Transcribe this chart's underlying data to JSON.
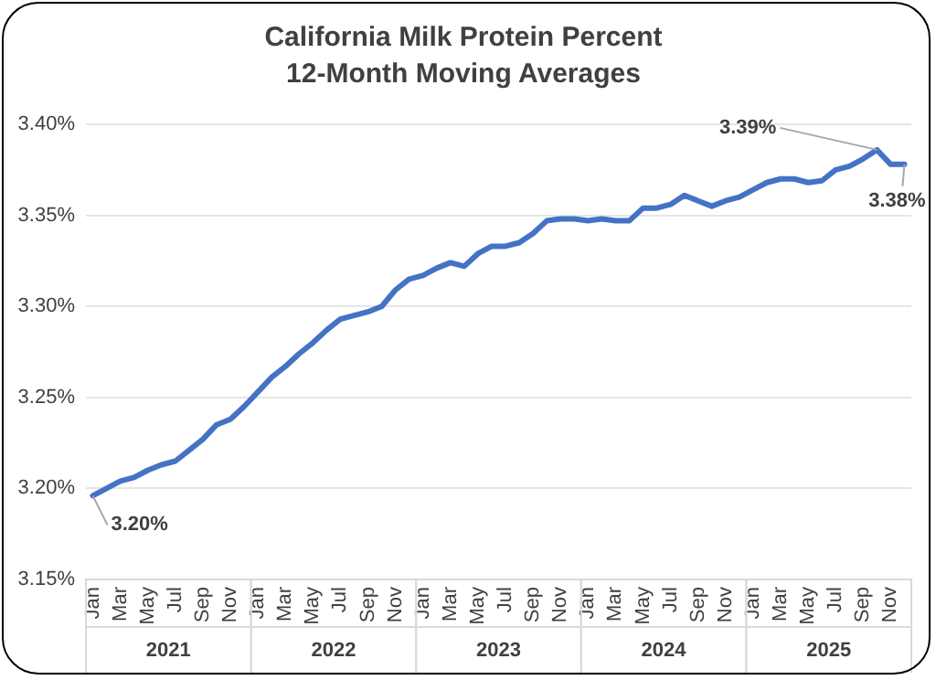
{
  "chart_data": {
    "type": "line",
    "title": "California Milk Protein Percent",
    "subtitle": "12-Month Moving Averages",
    "categories": [
      "Jan",
      null,
      "Mar",
      null,
      "May",
      null,
      "Jul",
      null,
      "Sep",
      null,
      "Nov",
      null,
      "Jan",
      null,
      "Mar",
      null,
      "May",
      null,
      "Jul",
      null,
      "Sep",
      null,
      "Nov",
      null,
      "Jan",
      null,
      "Mar",
      null,
      "May",
      null,
      "Jul",
      null,
      "Sep",
      null,
      "Nov",
      null,
      "Jan",
      null,
      "Mar",
      null,
      "May",
      null,
      "Jul",
      null,
      "Sep",
      null,
      "Nov",
      null,
      "Jan",
      null,
      "Mar",
      null,
      "May",
      null,
      "Jul",
      null,
      "Sep",
      null,
      "Nov",
      null
    ],
    "values": [
      3.196,
      3.2,
      3.204,
      3.206,
      3.21,
      3.213,
      3.215,
      3.221,
      3.227,
      3.235,
      3.238,
      3.245,
      3.253,
      3.261,
      3.267,
      3.274,
      3.28,
      3.287,
      3.293,
      3.295,
      3.297,
      3.3,
      3.309,
      3.315,
      3.317,
      3.321,
      3.324,
      3.322,
      3.329,
      3.333,
      3.333,
      3.335,
      3.34,
      3.347,
      3.348,
      3.348,
      3.347,
      3.348,
      3.347,
      3.347,
      3.354,
      3.354,
      3.356,
      3.361,
      3.358,
      3.355,
      3.358,
      3.36,
      3.364,
      3.368,
      3.37,
      3.37,
      3.368,
      3.369,
      3.375,
      3.377,
      3.381,
      3.386,
      3.378,
      3.378
    ],
    "value_labels": [
      "3.20%",
      null,
      null,
      null,
      null,
      null,
      null,
      null,
      null,
      null,
      null,
      null,
      null,
      null,
      null,
      null,
      null,
      null,
      null,
      null,
      null,
      null,
      null,
      null,
      null,
      null,
      null,
      null,
      null,
      null,
      null,
      null,
      null,
      null,
      null,
      null,
      null,
      null,
      null,
      null,
      null,
      null,
      null,
      null,
      null,
      null,
      null,
      null,
      null,
      null,
      null,
      null,
      null,
      null,
      null,
      null,
      null,
      "3.39%",
      null,
      "3.38%"
    ],
    "color": "#4472c4",
    "ylim": [
      3.15,
      3.4
    ],
    "yticks": [
      {
        "value": 3.15,
        "label": "3.15%"
      },
      {
        "value": 3.2,
        "label": "3.20%"
      },
      {
        "value": 3.25,
        "label": "3.25%"
      },
      {
        "value": 3.3,
        "label": "3.30%"
      },
      {
        "value": 3.35,
        "label": "3.35%"
      },
      {
        "value": 3.4,
        "label": "3.40%"
      }
    ],
    "annotations": [
      "2021",
      "2022",
      "2023",
      "2024",
      "2025"
    ],
    "grid": "y",
    "legend": false,
    "marker": "none",
    "line_style": "solid"
  }
}
